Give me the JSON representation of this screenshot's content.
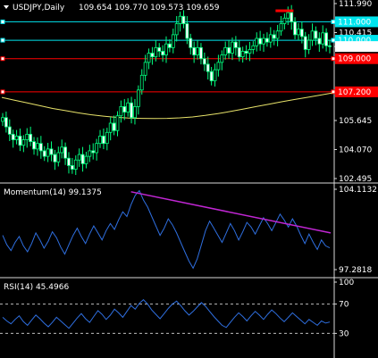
{
  "chart_data": [
    {
      "type": "candlestick",
      "title": "USDJPY,Daily",
      "ohlc_readout": "109.654 109.770 109.573 109.659",
      "ylim": [
        102.495,
        111.99
      ],
      "y_ticks": [
        {
          "value": 111.99,
          "label": "111.990"
        },
        {
          "value": 111.0,
          "label": "111.000"
        },
        {
          "value": 110.415,
          "label": "110.415"
        },
        {
          "value": 110.0,
          "label": "110.000"
        },
        {
          "value": 109.659,
          "label": "109.659"
        },
        {
          "value": 109.0,
          "label": "109.000"
        },
        {
          "value": 107.2,
          "label": "107.200"
        },
        {
          "value": 105.645,
          "label": "105.645"
        },
        {
          "value": 104.07,
          "label": "104.070"
        },
        {
          "value": 102.495,
          "label": "102.495"
        }
      ],
      "horizontal_lines": [
        {
          "value": 111.0,
          "color": "#00e5ee",
          "label": "111.000"
        },
        {
          "value": 110.0,
          "color": "#00e5ee",
          "label": "110.000"
        },
        {
          "value": 109.0,
          "color": "#ff0000",
          "label": "109.000"
        },
        {
          "value": 107.2,
          "color": "#ff0000",
          "label": "107.200"
        }
      ],
      "current_price": 109.659,
      "moving_average": {
        "color": "#e8e36a",
        "values": [
          106.9,
          106.75,
          106.6,
          106.45,
          106.3,
          106.18,
          106.06,
          105.96,
          105.88,
          105.82,
          105.78,
          105.76,
          105.75,
          105.76,
          105.79,
          105.84,
          105.92,
          106.02,
          106.14,
          106.27,
          106.4,
          106.53,
          106.66,
          106.78,
          106.9,
          107.02,
          107.14
        ]
      },
      "closes": [
        105.8,
        105.3,
        104.9,
        104.6,
        104.8,
        104.3,
        104.6,
        104.9,
        104.5,
        104.1,
        104.4,
        104.0,
        103.7,
        104.1,
        103.8,
        103.4,
        103.9,
        104.2,
        103.6,
        103.2,
        103.0,
        103.5,
        103.8,
        103.3,
        103.7,
        104.0,
        103.9,
        104.4,
        104.8,
        104.4,
        105.0,
        105.5,
        105.1,
        105.9,
        106.4,
        106.1,
        106.6,
        105.8,
        106.4,
        107.3,
        108.1,
        108.8,
        109.3,
        109.1,
        109.6,
        109.4,
        109.2,
        109.8,
        109.6,
        110.3,
        110.9,
        111.3,
        110.9,
        110.1,
        109.6,
        109.2,
        109.6,
        109.0,
        108.7,
        108.3,
        107.8,
        108.4,
        108.8,
        109.2,
        109.6,
        109.3,
        109.9,
        109.6,
        109.1,
        109.4,
        109.3,
        109.5,
        109.7,
        110.1,
        109.8,
        110.1,
        109.9,
        110.3,
        110.1,
        110.5,
        110.9,
        111.2,
        111.5,
        111.0,
        110.3,
        110.6,
        110.2,
        109.5,
        110.0,
        110.5,
        110.1,
        109.8,
        110.4,
        109.7,
        109.66
      ],
      "marker": {
        "value": 111.6,
        "color": "#ff0000"
      }
    },
    {
      "type": "line",
      "title": "Momentum(14) 99.1375",
      "ylim": [
        97.2818,
        104.1132
      ],
      "y_ticks": [
        {
          "value": 104.1132,
          "label": "104.1132"
        },
        {
          "value": 97.2818,
          "label": "97.2818"
        }
      ],
      "series": [
        {
          "name": "Momentum(14)",
          "color": "#2f6fe0",
          "values": [
            100.2,
            99.4,
            98.9,
            99.6,
            100.1,
            99.3,
            98.8,
            99.5,
            100.4,
            99.8,
            99.1,
            99.7,
            100.5,
            100.0,
            99.2,
            98.6,
            99.4,
            100.2,
            100.8,
            100.1,
            99.5,
            100.3,
            101.0,
            100.4,
            99.8,
            100.6,
            101.2,
            100.7,
            101.5,
            102.2,
            101.8,
            102.8,
            103.6,
            104.0,
            103.2,
            102.6,
            101.8,
            101.0,
            100.2,
            100.8,
            101.6,
            101.1,
            100.4,
            99.6,
            98.8,
            98.0,
            97.4,
            98.2,
            99.4,
            100.6,
            101.4,
            100.8,
            100.2,
            99.6,
            100.4,
            101.2,
            100.6,
            99.8,
            100.5,
            101.3,
            100.9,
            100.3,
            101.0,
            101.7,
            101.2,
            100.6,
            101.3,
            102.0,
            101.5,
            100.9,
            101.6,
            101.0,
            100.2,
            99.5,
            100.3,
            99.6,
            99.0,
            99.8,
            99.3,
            99.1375
          ]
        }
      ],
      "trendline": {
        "color": "#c026d3",
        "from": 103.9,
        "to": 100.4
      }
    },
    {
      "type": "line",
      "title": "RSI(14) 45.4966",
      "ylim": [
        0,
        100
      ],
      "y_ticks": [
        {
          "value": 100,
          "label": "100"
        },
        {
          "value": 70,
          "label": "70"
        },
        {
          "value": 30,
          "label": "30"
        }
      ],
      "levels": [
        70,
        30
      ],
      "series": [
        {
          "name": "RSI(14)",
          "color": "#2f6fe0",
          "values": [
            52,
            47,
            43,
            49,
            54,
            46,
            41,
            48,
            55,
            50,
            44,
            39,
            45,
            52,
            47,
            42,
            37,
            44,
            51,
            57,
            50,
            45,
            53,
            61,
            56,
            49,
            55,
            63,
            58,
            52,
            60,
            68,
            63,
            71,
            76,
            70,
            62,
            56,
            50,
            57,
            64,
            70,
            74,
            68,
            61,
            55,
            60,
            66,
            72,
            67,
            60,
            53,
            47,
            41,
            38,
            45,
            52,
            58,
            53,
            47,
            54,
            60,
            55,
            49,
            56,
            62,
            57,
            51,
            46,
            52,
            58,
            53,
            48,
            43,
            49,
            45,
            41,
            47,
            44,
            45.4966
          ]
        }
      ]
    }
  ]
}
